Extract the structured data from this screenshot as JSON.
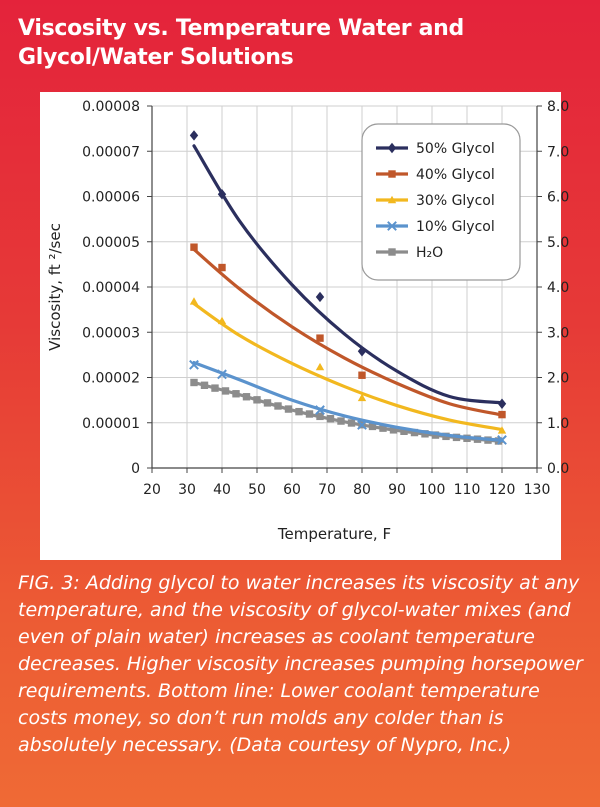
{
  "header": {
    "title_line1": "Viscosity vs. Temperature Water and",
    "title_line2": "Glycol/Water Solutions"
  },
  "caption": "FIG. 3: Adding glycol to water increases its viscosity at any temperature, and the viscosity of glycol-water mixes (and even of plain water) increases as coolant temperature decreases. Higher viscosity increases pumping horsepower requirements. Bottom line: Lower coolant temperature costs money, so don’t run molds any colder than is absolutely necessary. (Data courtesy of Nypro, Inc.)",
  "colors": {
    "background_top": "#e4233b",
    "background_bottom": "#ef6a35"
  },
  "chart_data": {
    "type": "scatter",
    "xlabel": "Temperature, F",
    "ylabel": "Viscosity, ft ²/sec",
    "xlim": [
      20,
      130
    ],
    "ylim": [
      0,
      8e-05
    ],
    "y2lim": [
      0,
      8.0
    ],
    "x_ticks": [
      "20",
      "30",
      "40",
      "50",
      "60",
      "70",
      "80",
      "90",
      "100",
      "110",
      "120",
      "130"
    ],
    "y_ticks": [
      "0",
      "0.00001",
      "0.00002",
      "0.00003",
      "0.00004",
      "0.00005",
      "0.00006",
      "0.00007",
      "0.00008"
    ],
    "y2_ticks": [
      "0.0",
      "1.0",
      "2.0",
      "3.0",
      "4.0",
      "5.0",
      "6.0",
      "7.0",
      "8.0"
    ],
    "grid": true,
    "legend_position": "top-right",
    "series": [
      {
        "name": "50% Glycol",
        "color": "#2b2f5e",
        "marker": "diamond",
        "points": [
          [
            32,
            7.35e-05
          ],
          [
            40,
            6.05e-05
          ],
          [
            68,
            3.78e-05
          ],
          [
            80,
            2.58e-05
          ],
          [
            120,
            1.42e-05
          ]
        ],
        "trend": [
          7.12e-05,
          5.46e-05,
          4.05e-05,
          2.96e-05,
          2.14e-05,
          1.58e-05,
          1.44e-05
        ]
      },
      {
        "name": "40% Glycol",
        "color": "#c0572a",
        "marker": "square",
        "points": [
          [
            32,
            4.88e-05
          ],
          [
            40,
            4.43e-05
          ],
          [
            68,
            2.87e-05
          ],
          [
            80,
            2.05e-05
          ],
          [
            120,
            1.18e-05
          ]
        ],
        "trend": [
          4.83e-05,
          3.96e-05,
          3.12e-05,
          2.43e-05,
          1.87e-05,
          1.42e-05,
          1.17e-05
        ]
      },
      {
        "name": "30% Glycol",
        "color": "#f2b81f",
        "marker": "triangle",
        "points": [
          [
            32,
            3.68e-05
          ],
          [
            40,
            3.25e-05
          ],
          [
            68,
            2.23e-05
          ],
          [
            80,
            1.55e-05
          ],
          [
            120,
            8.3e-06
          ]
        ],
        "trend": [
          3.63e-05,
          2.93e-05,
          2.31e-05,
          1.8e-05,
          1.38e-05,
          1.06e-05,
          8.5e-06
        ]
      },
      {
        "name": "10% Glycol",
        "color": "#5b93cd",
        "marker": "x",
        "points": [
          [
            32,
            2.28e-05
          ],
          [
            40,
            2.07e-05
          ],
          [
            68,
            1.28e-05
          ],
          [
            80,
            9.5e-06
          ],
          [
            120,
            6.2e-06
          ]
        ],
        "trend": [
          2.33e-05,
          1.95e-05,
          1.5e-05,
          1.15e-05,
          9e-06,
          7.2e-06,
          6.1e-06
        ]
      },
      {
        "name": "H₂O",
        "color": "#8c8c8c",
        "marker": "square",
        "points": [
          [
            32,
            1.89e-05
          ],
          [
            40,
            1.65e-05
          ],
          [
            68,
            1.05e-05
          ],
          [
            80,
            9.2e-06
          ],
          [
            120,
            5.8e-06
          ]
        ],
        "trend": [
          1.89e-05,
          1.62e-05,
          1.28e-05,
          1.02e-05,
          8.3e-06,
          6.9e-06,
          5.9e-06
        ]
      }
    ],
    "trend_x": [
      32,
      45,
      60,
      75,
      90,
      105,
      120
    ]
  }
}
